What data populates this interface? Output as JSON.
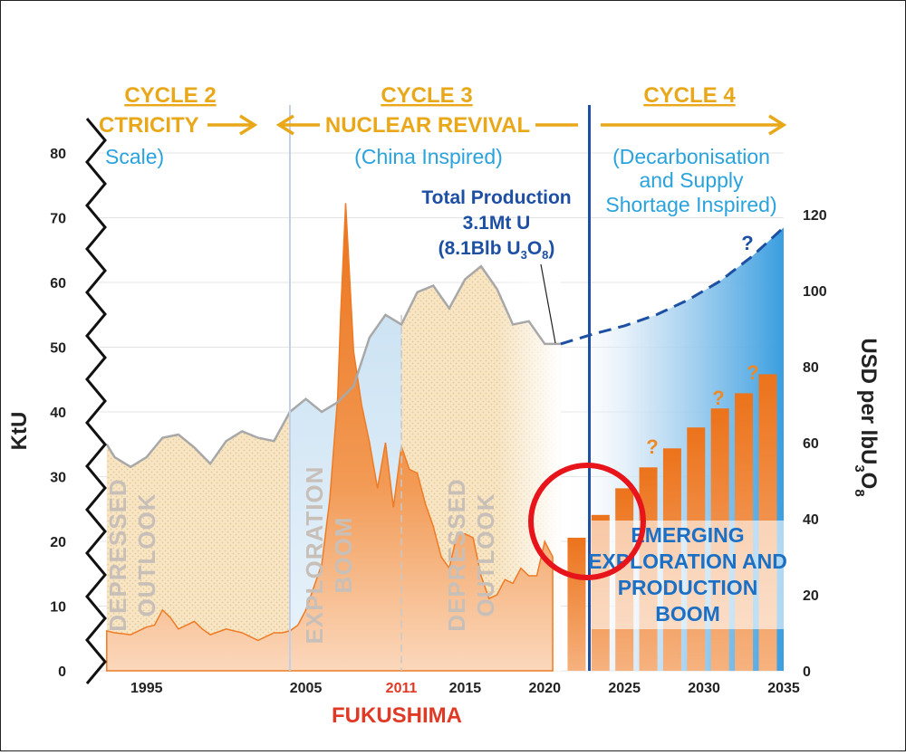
{
  "header": {
    "cycles": [
      {
        "name": "CYCLE 2",
        "theme": "CTRICITY",
        "sub": "Scale)"
      },
      {
        "name": "CYCLE 3",
        "theme": "NUCLEAR REVIVAL",
        "sub": "(China Inspired)"
      },
      {
        "name": "CYCLE 4",
        "sub_lines": [
          "(Decarbonisation",
          "and Supply",
          "Shortage Inspired)"
        ]
      }
    ]
  },
  "annotations": {
    "total_production": [
      "Total Production",
      "3.1Mt U",
      "(8.1Blb U3O8)"
    ],
    "phase1": [
      "DEPRESSED",
      "OUTLOOK"
    ],
    "phase2": [
      "EXPLORATION",
      "BOOM"
    ],
    "phase3": [
      "DEPRESSED",
      "OUTLOOK"
    ],
    "emerging": [
      "EMERGING",
      "EXPLORATION AND",
      "PRODUCTION",
      "BOOM"
    ],
    "fukushima": "FUKUSHIMA",
    "question_mark": "?"
  },
  "colors": {
    "cycle_gold": "#e8a81a",
    "sub_blue": "#2aa3dc",
    "production_blue": "#1d4fa3",
    "price_orange": "#ee7b25",
    "production_line": "#a8a8a8",
    "fukushima_red": "#e03a26",
    "circle_red": "#e8141b"
  },
  "chart_data": {
    "type": "area",
    "title": "",
    "xlabel": "",
    "ylabel_left": "KtU",
    "ylabel_right": "USD per lbU3O8",
    "xlim": [
      1992,
      2035
    ],
    "ylim_left": [
      0,
      80
    ],
    "ylim_right": [
      0,
      130
    ],
    "x_ticks": [
      "1995",
      "2005",
      "2011",
      "2015",
      "2020",
      "2025",
      "2030",
      "2035"
    ],
    "y_ticks_left": [
      "0",
      "10",
      "20",
      "30",
      "40",
      "50",
      "60",
      "70",
      "80"
    ],
    "y_ticks_right": [
      "0",
      "20",
      "40",
      "60",
      "80",
      "100",
      "120"
    ],
    "highlight_tick": "2011",
    "series": [
      {
        "axis": "left",
        "x": [
          1992.5,
          1993,
          1994,
          1995,
          1996,
          1997,
          1998,
          1999,
          2000,
          2001,
          2002,
          2003,
          2004,
          2005,
          2006,
          2007,
          2008,
          2009,
          2010,
          2011,
          2012,
          2013,
          2014,
          2015,
          2016,
          2017,
          2018,
          2019,
          2020,
          2021
        ],
        "y": [
          35,
          33,
          31.5,
          33,
          36,
          36.5,
          34.5,
          32,
          35.5,
          37,
          36,
          35.5,
          40,
          42,
          40,
          41.5,
          44,
          51.5,
          55,
          53.5,
          58.5,
          59.5,
          56,
          60.5,
          62.5,
          59,
          53.5,
          54,
          50.5,
          50.5
        ]
      },
      {
        "axis": "left",
        "style": "dashed",
        "x": [
          2021,
          2023,
          2025,
          2027,
          2029,
          2031,
          2033,
          2035
        ],
        "y": [
          50.5,
          52,
          53.3,
          55,
          57.3,
          60.2,
          64,
          68.5
        ]
      },
      {
        "axis": "right",
        "x": [
          1992.5,
          1993,
          1994,
          1995,
          1995.5,
          1996,
          1996.5,
          1997,
          1998,
          1998.5,
          1999,
          2000,
          2001,
          2001.5,
          2002,
          2003,
          2003.5,
          2004,
          2004.5,
          2005,
          2005.5,
          2006,
          2006.5,
          2007,
          2007.2,
          2007.5,
          2008,
          2008.5,
          2009,
          2009.5,
          2010,
          2010.5,
          2011,
          2011.5,
          2012,
          2012.5,
          2013,
          2013.5,
          2014,
          2014.5,
          2015,
          2015.5,
          2016,
          2016.5,
          2017,
          2017.5,
          2018,
          2018.5,
          2019,
          2019.5,
          2020,
          2020.5
        ],
        "y": [
          10.5,
          10,
          9.5,
          11.5,
          12,
          16,
          14,
          11,
          13,
          11,
          9.5,
          11,
          10,
          9,
          8,
          10,
          10,
          10.5,
          12,
          16,
          22,
          28,
          45,
          72,
          95,
          123,
          84,
          70,
          60,
          48,
          60,
          43,
          59,
          53,
          52,
          44,
          38,
          30,
          27,
          36,
          36,
          35,
          25,
          19,
          20,
          24,
          23,
          27,
          25,
          25,
          34,
          30
        ]
      },
      {
        "axis": "right",
        "type": "bar",
        "x": [
          2022,
          2023.5,
          2025,
          2026.5,
          2028,
          2029.5,
          2031,
          2032.5,
          2034
        ],
        "y": [
          35,
          41,
          48,
          53.5,
          58.5,
          64,
          69,
          73,
          78
        ]
      }
    ]
  }
}
